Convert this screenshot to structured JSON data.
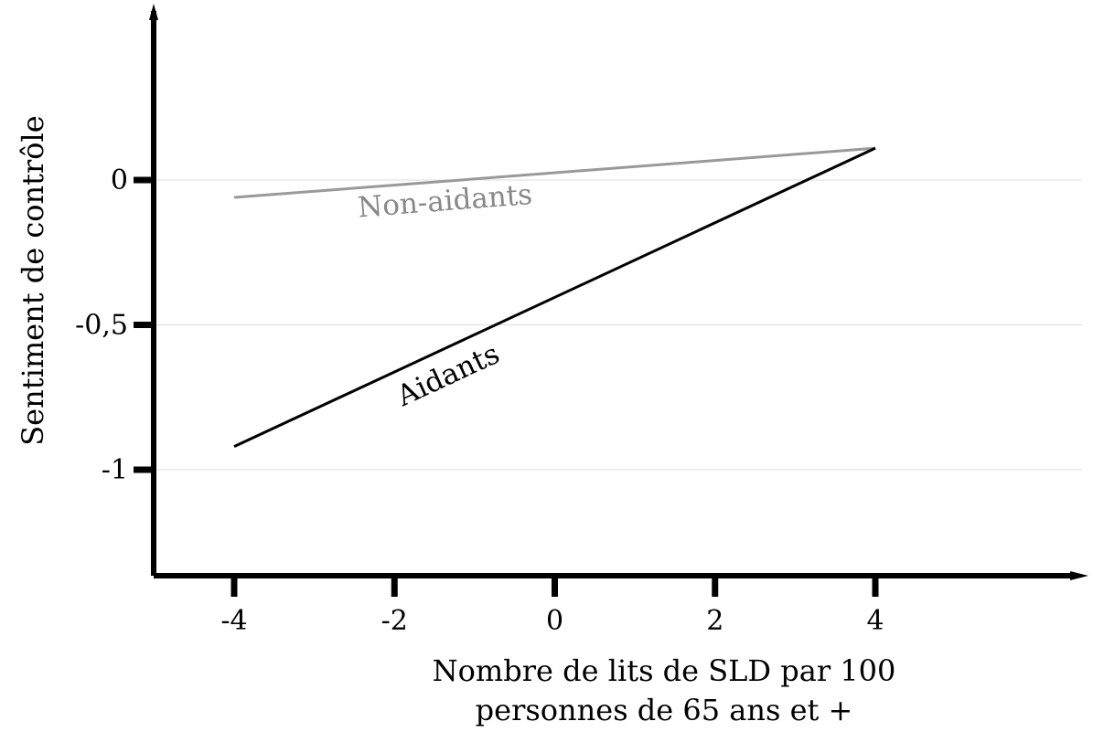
{
  "chart_data": {
    "type": "line",
    "title": "",
    "xlabel_lines": [
      "Nombre de lits de SLD par 100",
      "personnes de 65 ans et +"
    ],
    "ylabel": "Sentiment de contrôle",
    "x_ticks": [
      -4,
      -2,
      0,
      2,
      4
    ],
    "x_tick_labels": [
      "-4",
      "-2",
      "0",
      "2",
      "4"
    ],
    "y_ticks": [
      0,
      -0.5,
      -1
    ],
    "y_tick_labels": [
      "0",
      "-0,5",
      "-1"
    ],
    "xlim": [
      -5,
      6.5
    ],
    "ylim": [
      -1.37,
      0.58
    ],
    "grid": true,
    "series": [
      {
        "name": "Non-aidants",
        "color": "#999999",
        "x": [
          -4,
          4
        ],
        "y": [
          -0.06,
          0.11
        ]
      },
      {
        "name": "Aidants",
        "color": "#000000",
        "x": [
          -4,
          4
        ],
        "y": [
          -0.92,
          0.11
        ]
      }
    ]
  }
}
